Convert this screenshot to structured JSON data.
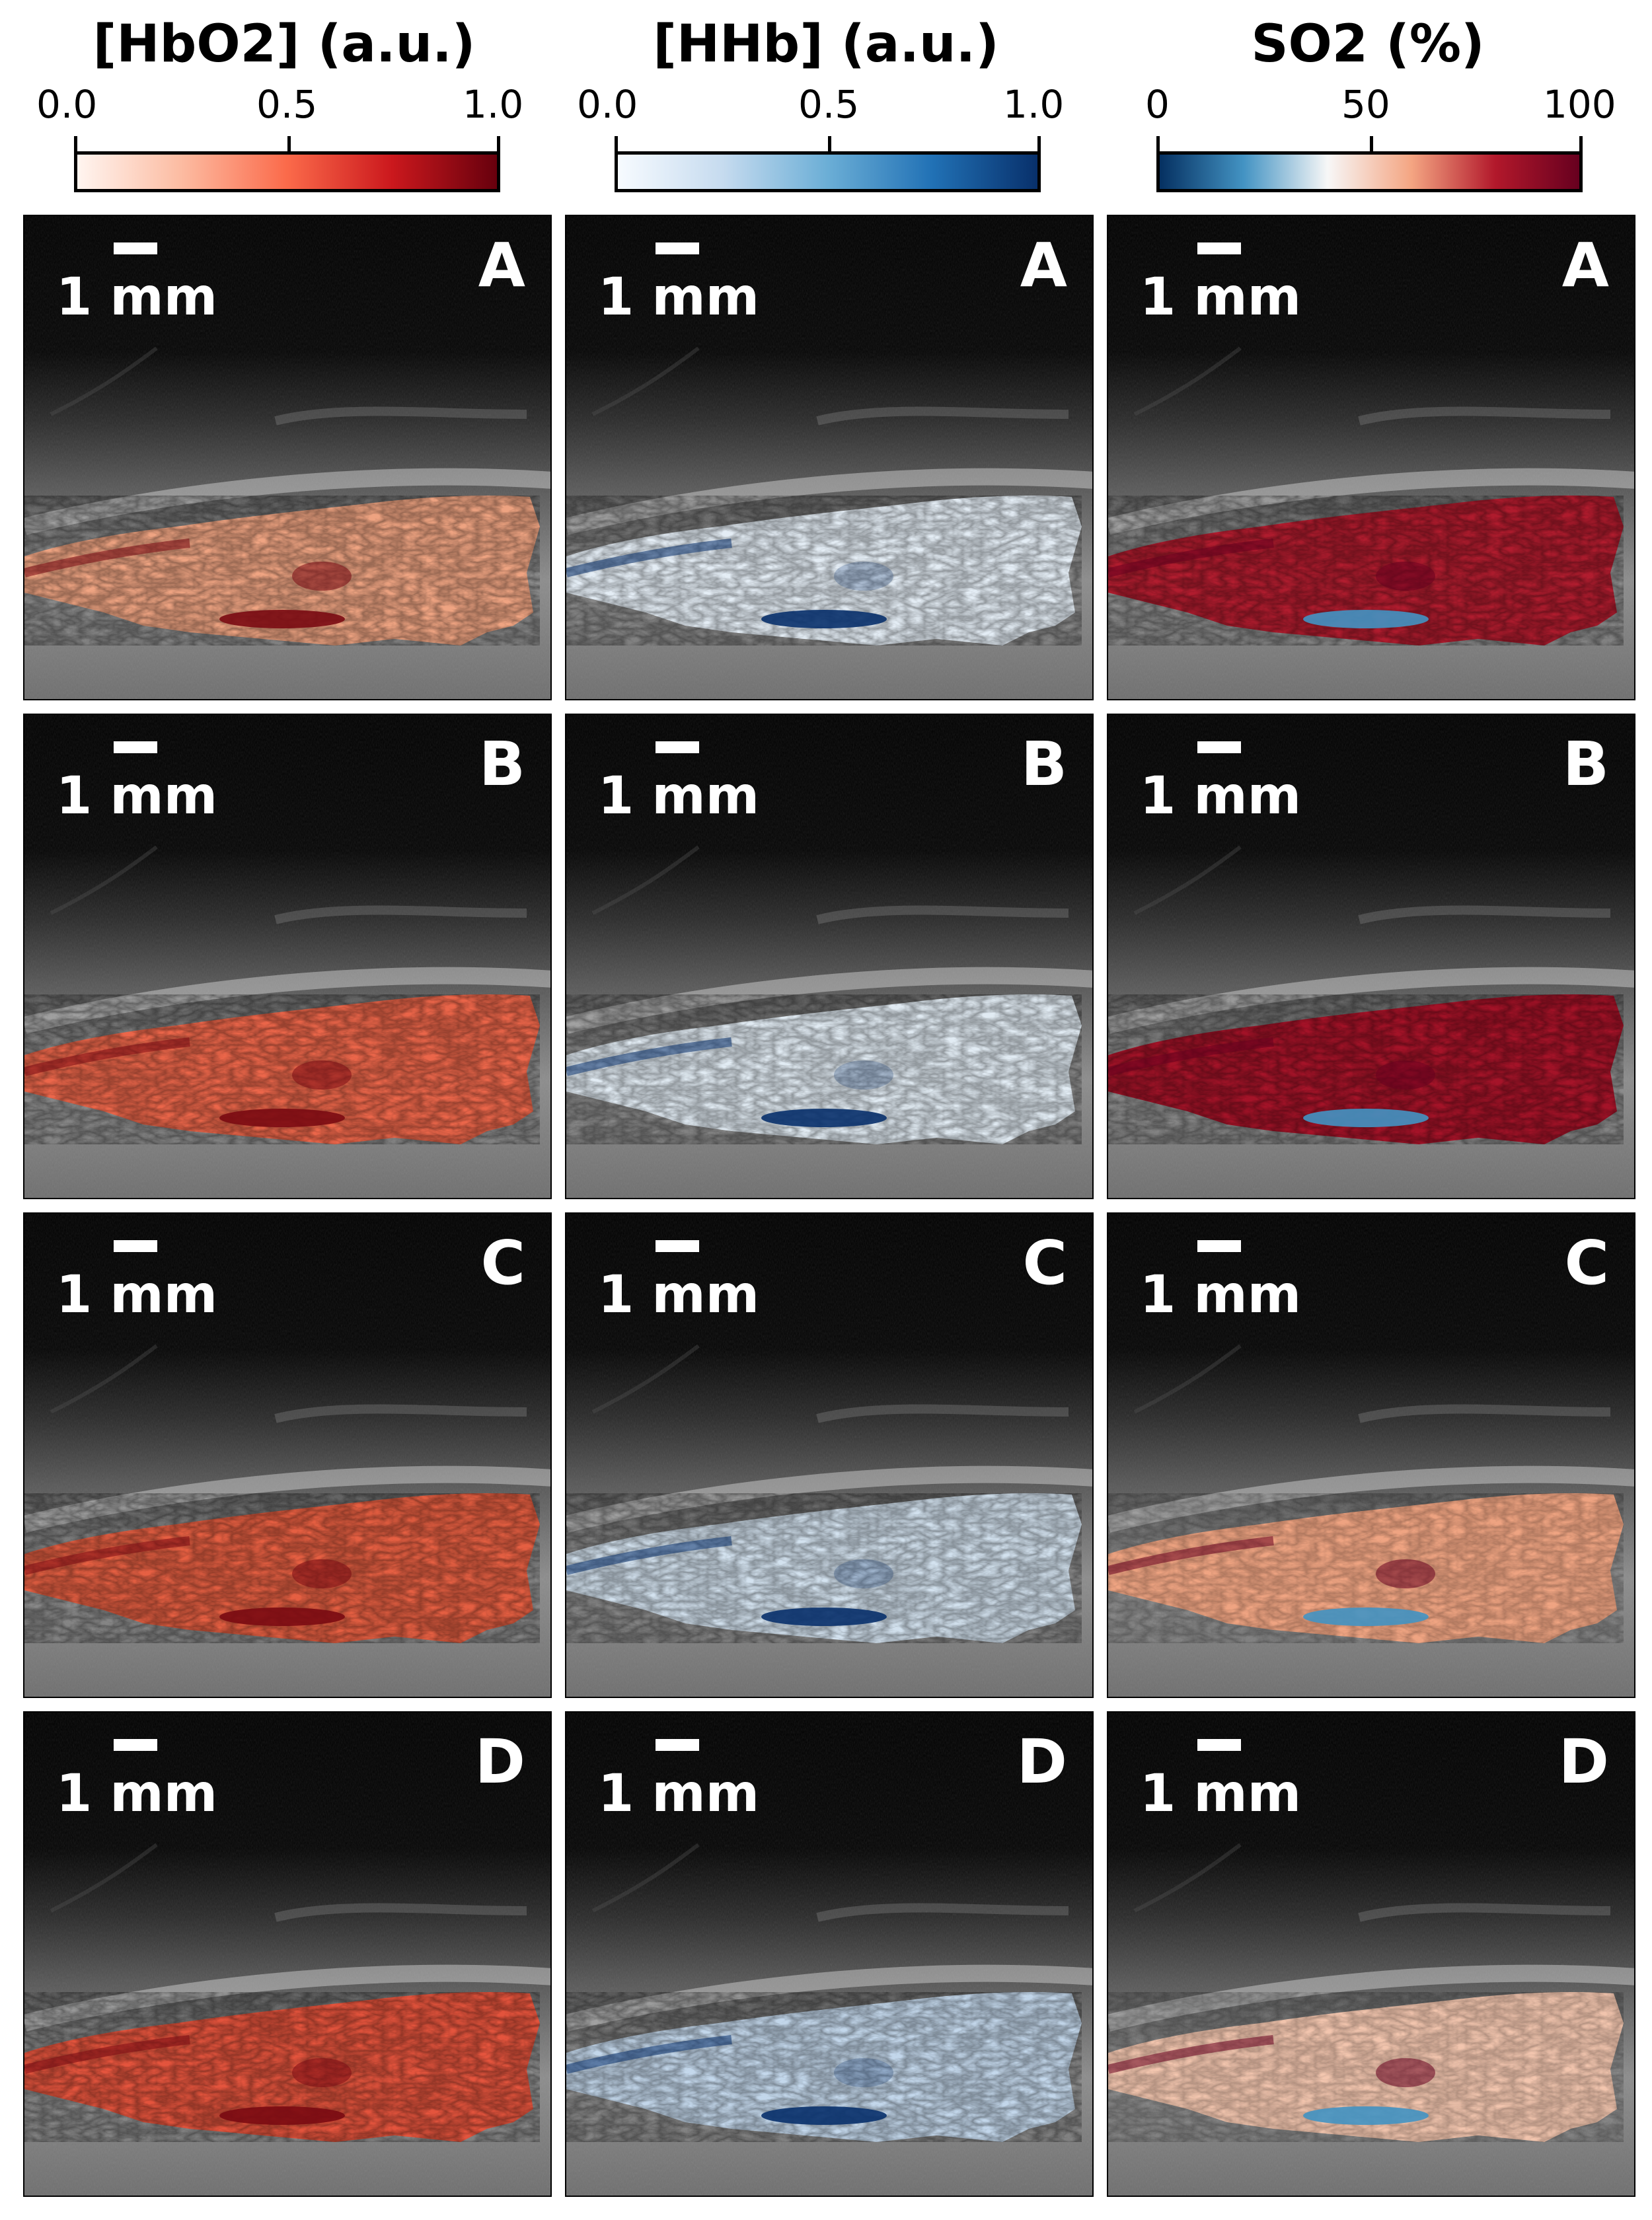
{
  "columns": [
    {
      "title": "[HbO2] (a.u.)",
      "ticks": [
        "0.0",
        "0.5",
        "1.0"
      ],
      "colormap": "Reds",
      "gradient": [
        "#fff5f0",
        "#fcbba1",
        "#fb6a4a",
        "#cb181d",
        "#67000d"
      ]
    },
    {
      "title": "[HHb] (a.u.)",
      "ticks": [
        "0.0",
        "0.5",
        "1.0"
      ],
      "colormap": "Blues",
      "gradient": [
        "#f7fbff",
        "#c6dbef",
        "#6baed6",
        "#2171b5",
        "#08306b"
      ]
    },
    {
      "title": "SO2 (%)",
      "ticks": [
        "0",
        "50",
        "100"
      ],
      "colormap": "RdBu_r",
      "gradient": [
        "#053061",
        "#4393c3",
        "#f7f7f7",
        "#f4a582",
        "#b2182b",
        "#67001f"
      ]
    }
  ],
  "rows": [
    "A",
    "B",
    "C",
    "D"
  ],
  "scale_bar_label": "1 mm",
  "overlay_tones": {
    "col0": [
      "#f4a582",
      "#ef6548",
      "#e95e3f",
      "#e8523a"
    ],
    "col1": [
      "#e8f1fa",
      "#e6f0f9",
      "#d6e6f4",
      "#c6dbef"
    ],
    "col2": [
      "#b2182b",
      "#a50f24",
      "#f4a582",
      "#f7c8b0"
    ]
  },
  "hotspot_tones": {
    "col0": "#7a0a12",
    "col1": "#08306b",
    "col2": "#67001f"
  }
}
